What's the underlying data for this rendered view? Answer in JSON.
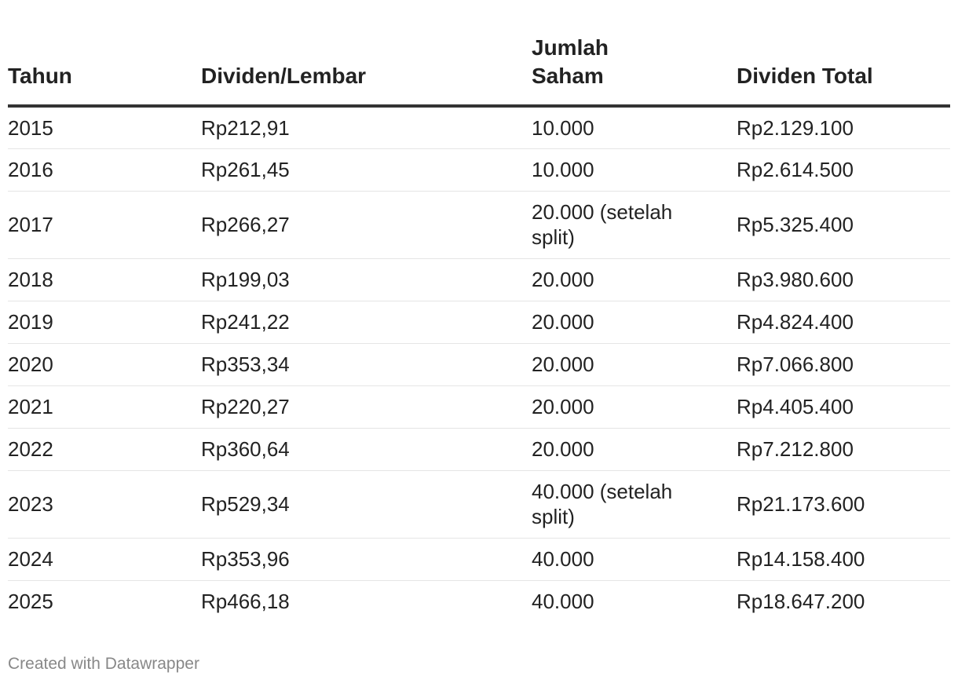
{
  "chart_data": {
    "type": "table",
    "columns": [
      "Tahun",
      "Dividen/Lembar",
      "Jumlah Saham",
      "Dividen Total"
    ],
    "rows": [
      [
        "2015",
        "Rp212,91",
        "10.000",
        "Rp2.129.100"
      ],
      [
        "2016",
        "Rp261,45",
        "10.000",
        "Rp2.614.500"
      ],
      [
        "2017",
        "Rp266,27",
        "20.000 (setelah split)",
        "Rp5.325.400"
      ],
      [
        "2018",
        "Rp199,03",
        "20.000",
        "Rp3.980.600"
      ],
      [
        "2019",
        "Rp241,22",
        "20.000",
        "Rp4.824.400"
      ],
      [
        "2020",
        "Rp353,34",
        "20.000",
        "Rp7.066.800"
      ],
      [
        "2021",
        "Rp220,27",
        "20.000",
        "Rp4.405.400"
      ],
      [
        "2022",
        "Rp360,64",
        "20.000",
        "Rp7.212.800"
      ],
      [
        "2023",
        "Rp529,34",
        "40.000 (setelah split)",
        "Rp21.173.600"
      ],
      [
        "2024",
        "Rp353,96",
        "40.000",
        "Rp14.158.400"
      ],
      [
        "2025",
        "Rp466,18",
        "40.000",
        "Rp18.647.200"
      ]
    ]
  },
  "footer": {
    "credit": "Created with Datawrapper"
  }
}
